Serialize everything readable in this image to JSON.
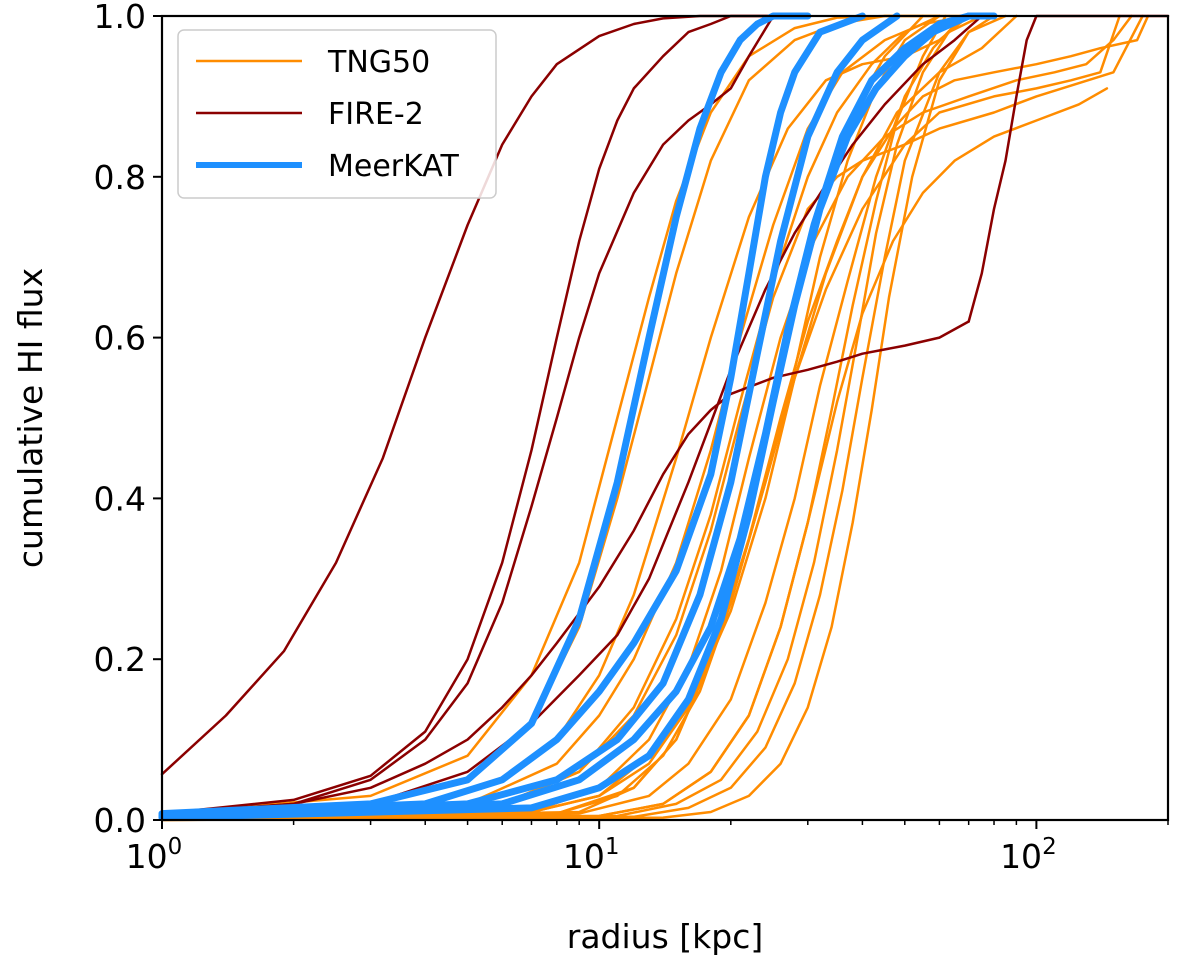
{
  "chart_data": {
    "type": "line",
    "title": "",
    "xlabel": "radius [kpc]",
    "ylabel": "cumulative HI flux",
    "xscale": "log",
    "xlim": [
      1,
      200
    ],
    "ylim": [
      0,
      1.0
    ],
    "xticks": [
      1,
      10,
      100
    ],
    "xtick_labels": [
      {
        "base": "10",
        "exp": "0"
      },
      {
        "base": "10",
        "exp": "1"
      },
      {
        "base": "10",
        "exp": "2"
      }
    ],
    "yticks": [
      0.0,
      0.2,
      0.4,
      0.6,
      0.8,
      1.0
    ],
    "ytick_labels": [
      "0.0",
      "0.2",
      "0.4",
      "0.6",
      "0.8",
      "1.0"
    ],
    "grid": false,
    "legend": {
      "placement": "top-left",
      "entries": [
        {
          "label": "TNG50",
          "color": "#ff8c00",
          "group": "TNG50"
        },
        {
          "label": "FIRE-2",
          "color": "#8b0000",
          "group": "FIRE-2"
        },
        {
          "label": "MeerKAT",
          "color": "#1e90ff",
          "group": "MeerKAT"
        }
      ]
    },
    "series": [
      {
        "name": "TNG50",
        "group": "TNG50",
        "color": "#ff8c00",
        "width": 2.5,
        "x": [
          1,
          3,
          5,
          7,
          9,
          11,
          13,
          15,
          18,
          22,
          28,
          35,
          45,
          60,
          80
        ],
        "y": [
          0.008,
          0.03,
          0.08,
          0.18,
          0.32,
          0.5,
          0.65,
          0.77,
          0.88,
          0.95,
          0.985,
          0.998,
          1,
          1,
          1
        ]
      },
      {
        "name": "TNG50",
        "group": "TNG50",
        "color": "#ff8c00",
        "width": 2.5,
        "x": [
          1,
          3,
          5,
          7,
          9,
          11,
          13,
          15,
          18,
          22,
          28,
          35,
          45,
          60
        ],
        "y": [
          0.008,
          0.02,
          0.05,
          0.12,
          0.24,
          0.4,
          0.55,
          0.68,
          0.82,
          0.92,
          0.97,
          0.99,
          1,
          1
        ]
      },
      {
        "name": "TNG50",
        "group": "TNG50",
        "color": "#ff8c00",
        "width": 2.5,
        "x": [
          1,
          4,
          6,
          8,
          10,
          12,
          15,
          18,
          22,
          27,
          33,
          40,
          50,
          60,
          70
        ],
        "y": [
          0.005,
          0.02,
          0.05,
          0.1,
          0.18,
          0.28,
          0.45,
          0.6,
          0.75,
          0.86,
          0.92,
          0.94,
          0.95,
          0.97,
          1
        ]
      },
      {
        "name": "TNG50",
        "group": "TNG50",
        "color": "#ff8c00",
        "width": 2.5,
        "x": [
          1,
          5,
          8,
          10,
          12,
          15,
          18,
          21,
          25,
          30,
          36,
          45,
          55,
          70
        ],
        "y": [
          0.003,
          0.02,
          0.07,
          0.13,
          0.2,
          0.32,
          0.46,
          0.6,
          0.74,
          0.86,
          0.93,
          0.97,
          0.99,
          1
        ]
      },
      {
        "name": "TNG50",
        "group": "TNG50",
        "color": "#ff8c00",
        "width": 2.5,
        "x": [
          1,
          6,
          9,
          12,
          15,
          18,
          21,
          25,
          30,
          35,
          42,
          50,
          60
        ],
        "y": [
          0.003,
          0.02,
          0.06,
          0.14,
          0.25,
          0.38,
          0.52,
          0.67,
          0.8,
          0.88,
          0.94,
          0.98,
          1
        ]
      },
      {
        "name": "TNG50",
        "group": "TNG50",
        "color": "#ff8c00",
        "width": 2.5,
        "x": [
          1,
          6,
          9,
          12,
          15,
          18,
          21,
          25,
          30,
          35,
          40,
          50,
          60,
          80,
          100,
          150,
          175
        ],
        "y": [
          0.003,
          0.02,
          0.06,
          0.13,
          0.23,
          0.36,
          0.5,
          0.65,
          0.76,
          0.8,
          0.82,
          0.84,
          0.86,
          0.88,
          0.9,
          0.93,
          1
        ]
      },
      {
        "name": "TNG50",
        "group": "TNG50",
        "color": "#ff8c00",
        "width": 2.5,
        "x": [
          1,
          7,
          10,
          13,
          16,
          19,
          22,
          26,
          31,
          37,
          45,
          55,
          70,
          90,
          110,
          130,
          150,
          165
        ],
        "y": [
          0.002,
          0.01,
          0.04,
          0.1,
          0.19,
          0.31,
          0.45,
          0.6,
          0.72,
          0.8,
          0.85,
          0.88,
          0.9,
          0.92,
          0.93,
          0.94,
          0.97,
          1
        ]
      },
      {
        "name": "TNG50",
        "group": "TNG50",
        "color": "#ff8c00",
        "width": 2.5,
        "x": [
          1,
          7,
          10,
          13,
          16,
          20,
          24,
          28,
          33,
          40,
          48,
          60,
          75,
          90
        ],
        "y": [
          0.002,
          0.01,
          0.03,
          0.07,
          0.14,
          0.26,
          0.4,
          0.55,
          0.68,
          0.8,
          0.88,
          0.93,
          0.96,
          1
        ]
      },
      {
        "name": "TNG50",
        "group": "TNG50",
        "color": "#ff8c00",
        "width": 2.5,
        "x": [
          1,
          7,
          10,
          13,
          16,
          20,
          24,
          28,
          33,
          40,
          50,
          60,
          80,
          100,
          120,
          140,
          155
        ],
        "y": [
          0.002,
          0.01,
          0.03,
          0.08,
          0.15,
          0.27,
          0.42,
          0.55,
          0.66,
          0.76,
          0.84,
          0.88,
          0.9,
          0.91,
          0.92,
          0.93,
          1
        ]
      },
      {
        "name": "TNG50",
        "group": "TNG50",
        "color": "#ff8c00",
        "width": 2.5,
        "x": [
          1,
          8,
          11,
          14,
          17,
          20,
          24,
          28,
          32,
          37,
          43,
          50,
          60
        ],
        "y": [
          0.001,
          0.008,
          0.03,
          0.08,
          0.16,
          0.27,
          0.42,
          0.56,
          0.7,
          0.82,
          0.91,
          0.97,
          1
        ]
      },
      {
        "name": "TNG50",
        "group": "TNG50",
        "color": "#ff8c00",
        "width": 2.5,
        "x": [
          1,
          8,
          12,
          15,
          18,
          22,
          26,
          30,
          35,
          40,
          47,
          55,
          65,
          80,
          100,
          120,
          140,
          170,
          180
        ],
        "y": [
          0.001,
          0.008,
          0.04,
          0.1,
          0.2,
          0.35,
          0.5,
          0.62,
          0.72,
          0.8,
          0.86,
          0.9,
          0.92,
          0.93,
          0.94,
          0.95,
          0.96,
          0.97,
          1
        ]
      },
      {
        "name": "TNG50",
        "group": "TNG50",
        "color": "#ff8c00",
        "width": 2.5,
        "x": [
          1,
          9,
          12,
          15,
          18,
          21,
          24,
          28,
          32,
          38,
          45,
          55
        ],
        "y": [
          0.001,
          0.01,
          0.04,
          0.1,
          0.2,
          0.33,
          0.47,
          0.63,
          0.77,
          0.88,
          0.95,
          1
        ]
      },
      {
        "name": "TNG50",
        "group": "TNG50",
        "color": "#ff8c00",
        "width": 2.5,
        "x": [
          1,
          9,
          13,
          16,
          20,
          24,
          28,
          32,
          37,
          43,
          50,
          58,
          68
        ],
        "y": [
          0.001,
          0.008,
          0.03,
          0.07,
          0.15,
          0.27,
          0.4,
          0.54,
          0.67,
          0.8,
          0.9,
          0.96,
          1
        ]
      },
      {
        "name": "TNG50",
        "group": "TNG50",
        "color": "#ff8c00",
        "width": 2.5,
        "x": [
          1,
          10,
          14,
          18,
          22,
          26,
          30,
          34,
          38,
          43,
          48,
          55,
          62
        ],
        "y": [
          0.001,
          0.005,
          0.02,
          0.06,
          0.13,
          0.24,
          0.37,
          0.51,
          0.64,
          0.77,
          0.87,
          0.95,
          1
        ]
      },
      {
        "name": "TNG50",
        "group": "TNG50",
        "color": "#ff8c00",
        "width": 2.5,
        "x": [
          1,
          10,
          14,
          18,
          22,
          26,
          30,
          35,
          40,
          47,
          55,
          65,
          80,
          100,
          125,
          145
        ],
        "y": [
          0.001,
          0.005,
          0.02,
          0.06,
          0.13,
          0.24,
          0.37,
          0.52,
          0.63,
          0.72,
          0.78,
          0.82,
          0.85,
          0.87,
          0.89,
          0.91
        ]
      },
      {
        "name": "TNG50",
        "group": "TNG50",
        "color": "#ff8c00",
        "width": 2.5,
        "x": [
          1,
          11,
          15,
          19,
          23,
          27,
          31,
          35,
          39,
          43,
          48,
          55,
          63,
          75
        ],
        "y": [
          0.001,
          0.005,
          0.02,
          0.05,
          0.11,
          0.2,
          0.32,
          0.46,
          0.6,
          0.73,
          0.84,
          0.93,
          0.98,
          1
        ]
      },
      {
        "name": "TNG50",
        "group": "TNG50",
        "color": "#ff8c00",
        "width": 2.5,
        "x": [
          1,
          12,
          16,
          20,
          24,
          28,
          32,
          36,
          40,
          45,
          50,
          60,
          70,
          85
        ],
        "y": [
          0.0,
          0.004,
          0.015,
          0.04,
          0.09,
          0.17,
          0.28,
          0.41,
          0.55,
          0.7,
          0.82,
          0.93,
          0.98,
          1
        ]
      },
      {
        "name": "TNG50",
        "group": "TNG50",
        "color": "#ff8c00",
        "width": 2.5,
        "x": [
          1,
          14,
          18,
          22,
          26,
          30,
          34,
          38,
          42,
          46,
          52,
          60,
          70,
          80
        ],
        "y": [
          0.0,
          0.003,
          0.01,
          0.03,
          0.07,
          0.14,
          0.24,
          0.37,
          0.51,
          0.65,
          0.8,
          0.92,
          0.98,
          1
        ]
      },
      {
        "name": "FIRE-2",
        "group": "FIRE-2",
        "color": "#8b0000",
        "width": 2.5,
        "x": [
          1,
          1.4,
          1.9,
          2.5,
          3.2,
          4,
          5,
          6,
          7,
          8,
          10,
          12,
          14,
          17,
          20,
          25
        ],
        "y": [
          0.057,
          0.13,
          0.21,
          0.32,
          0.45,
          0.6,
          0.74,
          0.84,
          0.9,
          0.94,
          0.975,
          0.99,
          0.997,
          1,
          1,
          1
        ]
      },
      {
        "name": "FIRE-2",
        "group": "FIRE-2",
        "color": "#8b0000",
        "width": 2.5,
        "x": [
          1,
          2,
          3,
          4,
          5,
          6,
          7,
          8,
          9,
          10,
          11,
          12,
          14,
          16,
          18,
          20,
          25
        ],
        "y": [
          0.008,
          0.025,
          0.055,
          0.11,
          0.2,
          0.32,
          0.46,
          0.6,
          0.72,
          0.81,
          0.87,
          0.91,
          0.95,
          0.98,
          0.99,
          1,
          1
        ]
      },
      {
        "name": "FIRE-2",
        "group": "FIRE-2",
        "color": "#8b0000",
        "width": 2.5,
        "x": [
          1,
          2,
          3,
          4,
          5,
          6,
          7,
          8,
          9,
          10,
          12,
          14,
          16,
          18,
          20,
          22,
          25
        ],
        "y": [
          0.008,
          0.02,
          0.05,
          0.1,
          0.17,
          0.27,
          0.39,
          0.5,
          0.6,
          0.68,
          0.78,
          0.84,
          0.87,
          0.89,
          0.91,
          0.95,
          1
        ]
      },
      {
        "name": "FIRE-2",
        "group": "FIRE-2",
        "color": "#8b0000",
        "width": 2.5,
        "x": [
          1,
          2,
          3,
          4,
          5,
          6,
          7,
          8,
          10,
          12,
          14,
          16,
          18,
          20,
          25,
          30,
          35,
          40,
          50,
          60,
          70
        ],
        "y": [
          0.008,
          0.02,
          0.04,
          0.07,
          0.1,
          0.14,
          0.18,
          0.22,
          0.29,
          0.36,
          0.43,
          0.48,
          0.51,
          0.53,
          0.55,
          0.56,
          0.57,
          0.58,
          0.59,
          0.6,
          0.62
        ]
      },
      {
        "name": "FIRE-2",
        "group": "FIRE-2",
        "color": "#8b0000",
        "width": 2.5,
        "x": [
          70,
          75,
          80,
          85,
          90,
          95,
          100,
          120,
          200
        ],
        "y": [
          0.62,
          0.68,
          0.76,
          0.82,
          0.9,
          0.97,
          1,
          1,
          1
        ]
      },
      {
        "name": "FIRE-2",
        "group": "FIRE-2",
        "color": "#8b0000",
        "width": 2.5,
        "x": [
          1,
          3,
          5,
          7,
          9,
          11,
          13,
          16,
          20,
          24,
          28,
          33,
          38,
          45,
          55,
          65,
          75
        ],
        "y": [
          0.005,
          0.02,
          0.06,
          0.12,
          0.18,
          0.23,
          0.3,
          0.42,
          0.56,
          0.66,
          0.73,
          0.79,
          0.84,
          0.89,
          0.94,
          0.97,
          1
        ]
      },
      {
        "name": "MeerKAT",
        "group": "MeerKAT",
        "color": "#1e90ff",
        "width": 7,
        "x": [
          1,
          3,
          5,
          7,
          9,
          11,
          13,
          15,
          17,
          19,
          21,
          23,
          25,
          30
        ],
        "y": [
          0.008,
          0.02,
          0.05,
          0.12,
          0.25,
          0.42,
          0.6,
          0.75,
          0.86,
          0.93,
          0.97,
          0.99,
          1,
          1
        ]
      },
      {
        "name": "MeerKAT",
        "group": "MeerKAT",
        "color": "#1e90ff",
        "width": 7,
        "x": [
          1,
          4,
          6,
          8,
          10,
          12,
          15,
          18,
          20,
          22,
          24,
          26,
          28,
          32,
          40
        ],
        "y": [
          0.006,
          0.02,
          0.05,
          0.1,
          0.16,
          0.22,
          0.31,
          0.43,
          0.55,
          0.68,
          0.8,
          0.88,
          0.93,
          0.98,
          1
        ]
      },
      {
        "name": "MeerKAT",
        "group": "MeerKAT",
        "color": "#1e90ff",
        "width": 7,
        "x": [
          1,
          5,
          8,
          11,
          14,
          17,
          20,
          23,
          26,
          30,
          35,
          40,
          48
        ],
        "y": [
          0.005,
          0.02,
          0.05,
          0.1,
          0.17,
          0.28,
          0.42,
          0.58,
          0.72,
          0.85,
          0.93,
          0.97,
          1
        ]
      },
      {
        "name": "MeerKAT",
        "group": "MeerKAT",
        "color": "#1e90ff",
        "width": 7,
        "x": [
          1,
          6,
          9,
          12,
          15,
          18,
          21,
          24,
          27,
          31,
          36,
          42,
          50,
          60,
          70
        ],
        "y": [
          0.004,
          0.02,
          0.05,
          0.1,
          0.16,
          0.24,
          0.35,
          0.48,
          0.61,
          0.74,
          0.85,
          0.92,
          0.96,
          0.99,
          1
        ]
      },
      {
        "name": "MeerKAT",
        "group": "MeerKAT",
        "color": "#1e90ff",
        "width": 7,
        "x": [
          1,
          7,
          10,
          13,
          16,
          19,
          22,
          25,
          28,
          32,
          37,
          43,
          50,
          58,
          70,
          80
        ],
        "y": [
          0.003,
          0.015,
          0.04,
          0.08,
          0.15,
          0.25,
          0.38,
          0.52,
          0.64,
          0.76,
          0.85,
          0.91,
          0.95,
          0.98,
          1,
          1
        ]
      }
    ]
  }
}
